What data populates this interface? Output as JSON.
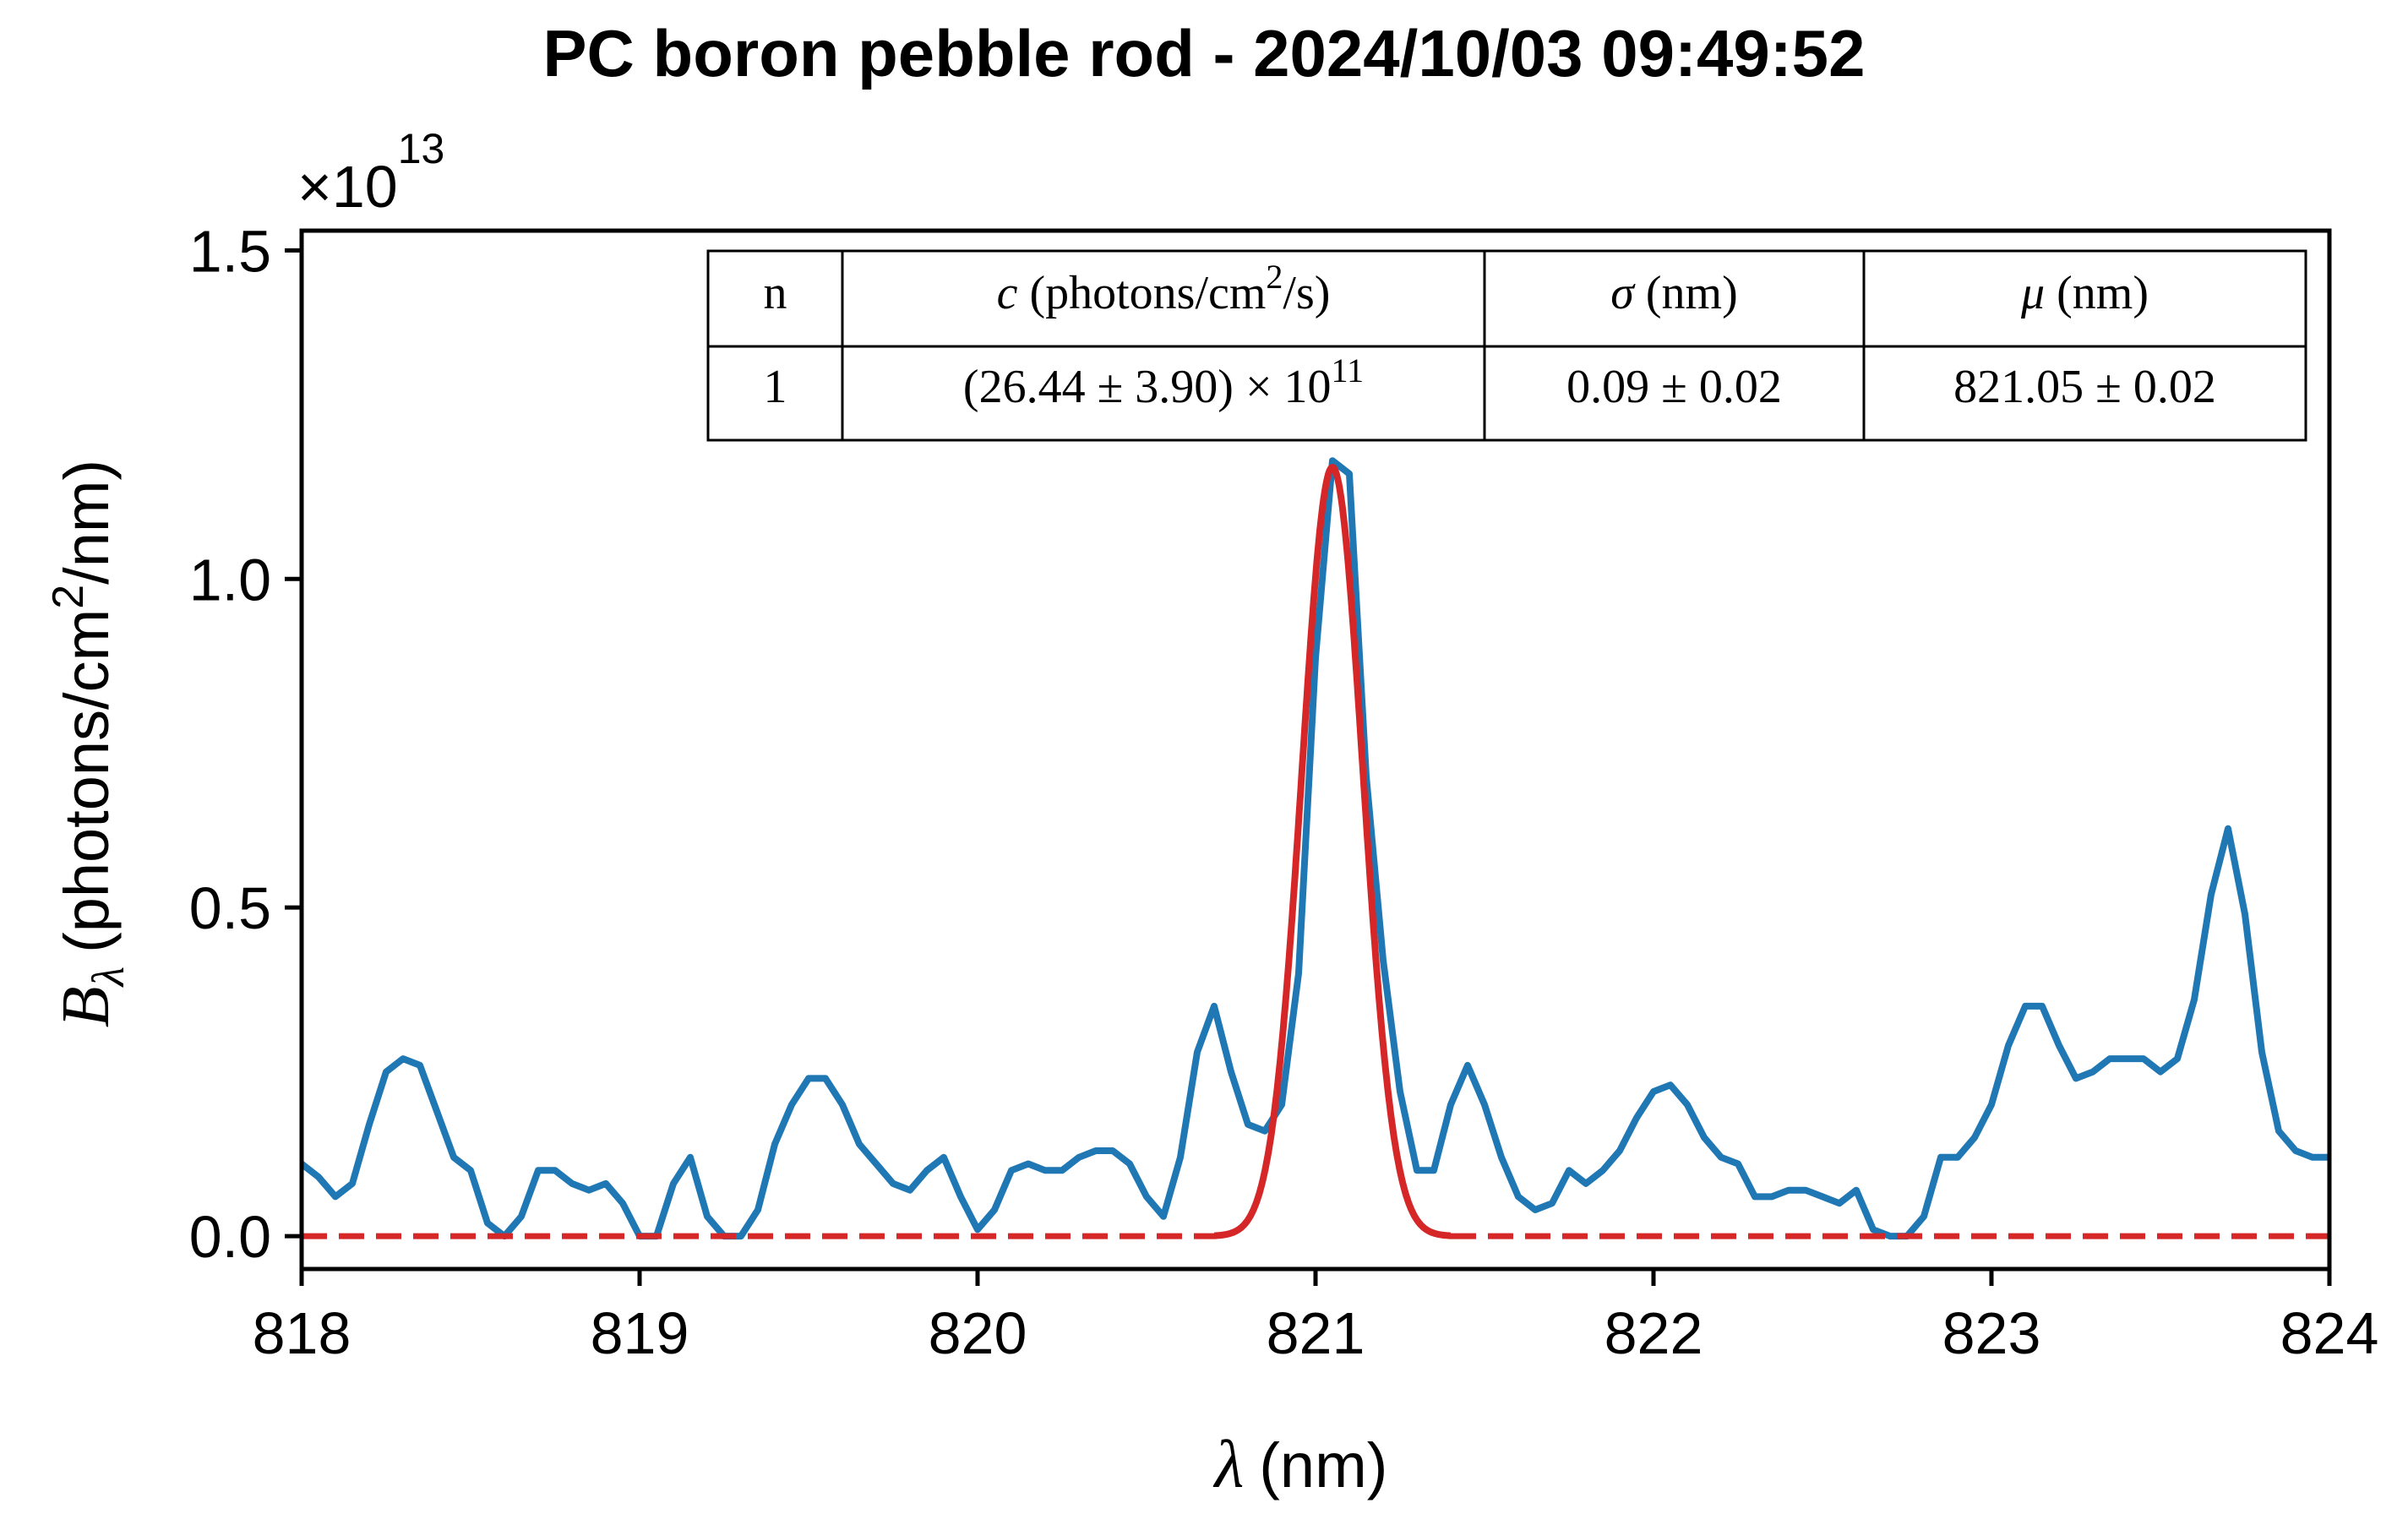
{
  "chart_data": {
    "type": "line",
    "title": "PC boron pebble rod - 2024/10/03 09:49:52",
    "xlabel": {
      "symbol": "λ",
      "unit": "(nm)"
    },
    "ylabel": {
      "symbol": "B",
      "subscript": "λ",
      "unit_pre": "(photons/cm",
      "unit_sup": "2",
      "unit_post": "/nm)"
    },
    "y_offset_label": {
      "base": "×10",
      "exponent": "13"
    },
    "xlim": [
      818,
      824
    ],
    "ylim": [
      -0.05,
      1.53
    ],
    "y_scale_factor": "1e13",
    "xticks": [
      818,
      819,
      820,
      821,
      822,
      823,
      824
    ],
    "xtick_labels": [
      "818",
      "819",
      "820",
      "821",
      "822",
      "823",
      "824"
    ],
    "yticks": [
      0.0,
      0.5,
      1.0,
      1.5
    ],
    "ytick_labels": [
      "0.0",
      "0.5",
      "1.0",
      "1.5"
    ],
    "grid": false,
    "series": [
      {
        "color": "#1f77b4",
        "style": "solid",
        "x": [
          818.0,
          818.05,
          818.1,
          818.15,
          818.2,
          818.25,
          818.3,
          818.35,
          818.4,
          818.45,
          818.5,
          818.55,
          818.6,
          818.65,
          818.7,
          818.75,
          818.8,
          818.85,
          818.9,
          818.95,
          819.0,
          819.05,
          819.1,
          819.15,
          819.2,
          819.25,
          819.3,
          819.35,
          819.4,
          819.45,
          819.5,
          819.55,
          819.6,
          819.65,
          819.7,
          819.75,
          819.8,
          819.85,
          819.9,
          819.95,
          820.0,
          820.05,
          820.1,
          820.15,
          820.2,
          820.25,
          820.3,
          820.35,
          820.4,
          820.45,
          820.5,
          820.55,
          820.6,
          820.65,
          820.7,
          820.75,
          820.8,
          820.85,
          820.9,
          820.95,
          821.0,
          821.05,
          821.1,
          821.15,
          821.2,
          821.25,
          821.3,
          821.35,
          821.4,
          821.45,
          821.5,
          821.55,
          821.6,
          821.65,
          821.7,
          821.75,
          821.8,
          821.85,
          821.9,
          821.95,
          822.0,
          822.05,
          822.1,
          822.15,
          822.2,
          822.25,
          822.3,
          822.35,
          822.4,
          822.45,
          822.5,
          822.55,
          822.6,
          822.65,
          822.7,
          822.75,
          822.8,
          822.85,
          822.9,
          822.95,
          823.0,
          823.05,
          823.1,
          823.15,
          823.2,
          823.25,
          823.3,
          823.35,
          823.4,
          823.45,
          823.5,
          823.55,
          823.6,
          823.65,
          823.7,
          823.75,
          823.8,
          823.85,
          823.9,
          823.95,
          824.0
        ],
        "y": [
          0.11,
          0.09,
          0.06,
          0.08,
          0.17,
          0.25,
          0.27,
          0.26,
          0.19,
          0.12,
          0.1,
          0.02,
          0.0,
          0.03,
          0.1,
          0.1,
          0.08,
          0.07,
          0.08,
          0.05,
          0.0,
          0.0,
          0.08,
          0.12,
          0.03,
          0.0,
          0.0,
          0.04,
          0.14,
          0.2,
          0.24,
          0.24,
          0.2,
          0.14,
          0.11,
          0.08,
          0.07,
          0.1,
          0.12,
          0.06,
          0.01,
          0.04,
          0.1,
          0.11,
          0.1,
          0.1,
          0.12,
          0.13,
          0.13,
          0.11,
          0.06,
          0.03,
          0.12,
          0.28,
          0.35,
          0.25,
          0.17,
          0.16,
          0.2,
          0.4,
          0.88,
          1.18,
          1.16,
          0.7,
          0.42,
          0.22,
          0.1,
          0.1,
          0.2,
          0.26,
          0.2,
          0.12,
          0.06,
          0.04,
          0.05,
          0.1,
          0.08,
          0.1,
          0.13,
          0.18,
          0.22,
          0.23,
          0.2,
          0.15,
          0.12,
          0.11,
          0.06,
          0.06,
          0.07,
          0.07,
          0.06,
          0.05,
          0.07,
          0.01,
          0.0,
          0.0,
          0.03,
          0.12,
          0.12,
          0.15,
          0.2,
          0.29,
          0.35,
          0.35,
          0.29,
          0.24,
          0.25,
          0.27,
          0.27,
          0.27,
          0.25,
          0.27,
          0.36,
          0.52,
          0.62,
          0.49,
          0.28,
          0.16,
          0.13,
          0.12,
          0.12
        ]
      },
      {
        "color": "#d62728",
        "style": "gaussian-fit",
        "amplitude": 1.17,
        "mu": 821.05,
        "sigma": 0.09,
        "solid_range": [
          820.7,
          821.4
        ]
      }
    ]
  },
  "fit_table": {
    "headers": [
      {
        "italic": "",
        "text": "n",
        "sup": "",
        "tail": ""
      },
      {
        "italic": "c",
        "text": " (photons/cm",
        "sup": "2",
        "tail": "/s)"
      },
      {
        "italic": "σ",
        "text": " (nm)",
        "sup": "",
        "tail": ""
      },
      {
        "italic": "μ",
        "text": " (nm)",
        "sup": "",
        "tail": ""
      }
    ],
    "rows": [
      [
        {
          "text": "1",
          "sup": ""
        },
        {
          "text": "(26.44 ± 3.90) × 10",
          "sup": "11"
        },
        {
          "text": "0.09 ± 0.02",
          "sup": ""
        },
        {
          "text": "821.05 ± 0.02",
          "sup": ""
        }
      ]
    ]
  }
}
